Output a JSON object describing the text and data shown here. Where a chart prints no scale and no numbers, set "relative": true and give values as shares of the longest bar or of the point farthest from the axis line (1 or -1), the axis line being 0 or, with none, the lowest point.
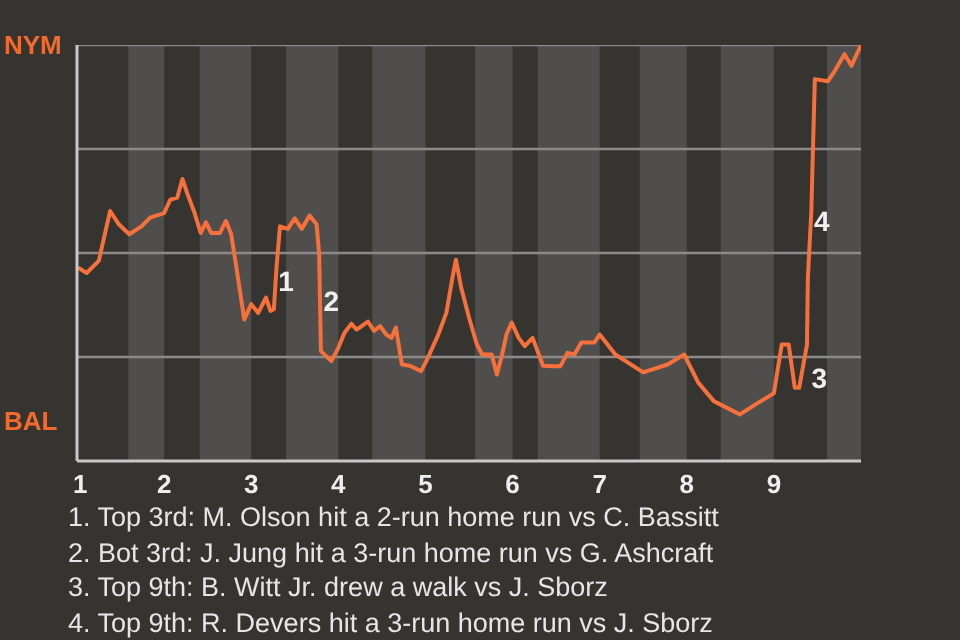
{
  "chart_data": {
    "type": "line",
    "relative": true,
    "x": [
      1.01,
      1.11,
      1.25,
      1.38,
      1.48,
      1.6,
      1.74,
      1.84,
      2.0,
      2.07,
      2.15,
      2.21,
      2.27,
      2.35,
      2.42,
      2.48,
      2.54,
      2.64,
      2.71,
      2.77,
      2.83,
      2.92,
      3.0,
      3.08,
      3.17,
      3.22,
      3.26,
      3.29,
      3.33,
      3.42,
      3.5,
      3.58,
      3.67,
      3.75,
      3.78,
      3.8,
      3.92,
      4.0,
      4.07,
      4.15,
      4.21,
      4.34,
      4.41,
      4.48,
      4.55,
      4.61,
      4.66,
      4.73,
      4.82,
      4.95,
      5.01,
      5.14,
      5.24,
      5.31,
      5.35,
      5.41,
      5.5,
      5.59,
      5.65,
      5.76,
      5.82,
      5.88,
      5.93,
      5.99,
      6.07,
      6.14,
      6.23,
      6.35,
      6.47,
      6.55,
      6.63,
      6.71,
      6.79,
      6.94,
      7.0,
      7.18,
      7.5,
      7.78,
      7.97,
      8.13,
      8.31,
      8.61,
      8.79,
      9.0,
      9.09,
      9.17,
      9.24,
      9.29,
      9.38,
      9.39,
      9.43,
      9.45,
      9.47,
      9.62,
      9.7,
      9.81,
      9.89,
      10.0
    ],
    "series": [
      {
        "color": "#f5703a",
        "values": [
          0.465,
          0.452,
          0.481,
          0.601,
          0.569,
          0.545,
          0.564,
          0.585,
          0.596,
          0.628,
          0.633,
          0.678,
          0.641,
          0.596,
          0.548,
          0.574,
          0.548,
          0.548,
          0.577,
          0.545,
          0.465,
          0.34,
          0.377,
          0.356,
          0.393,
          0.361,
          0.365,
          0.465,
          0.564,
          0.558,
          0.583,
          0.558,
          0.59,
          0.569,
          0.497,
          0.264,
          0.24,
          0.272,
          0.308,
          0.33,
          0.316,
          0.335,
          0.313,
          0.324,
          0.304,
          0.296,
          0.321,
          0.232,
          0.229,
          0.216,
          0.24,
          0.3,
          0.356,
          0.441,
          0.484,
          0.417,
          0.345,
          0.28,
          0.256,
          0.256,
          0.208,
          0.256,
          0.304,
          0.333,
          0.296,
          0.276,
          0.296,
          0.229,
          0.228,
          0.228,
          0.26,
          0.256,
          0.285,
          0.285,
          0.304,
          0.256,
          0.213,
          0.232,
          0.256,
          0.189,
          0.144,
          0.112,
          0.136,
          0.163,
          0.28,
          0.28,
          0.176,
          0.176,
          0.28,
          0.441,
          0.601,
          0.761,
          0.918,
          0.913,
          0.938,
          0.978,
          0.95,
          1.0
        ]
      }
    ],
    "xlim": [
      1,
      10
    ],
    "xticks": [
      1,
      2,
      3,
      4,
      5,
      6,
      7,
      8,
      9
    ],
    "ref_lines": [
      {
        "axis": "y",
        "value": 0.25,
        "color": "#8a8a8a"
      },
      {
        "axis": "y",
        "value": 0.5,
        "color": "#8a8a8a"
      },
      {
        "axis": "y",
        "value": 0.75,
        "color": "#8a8a8a"
      },
      {
        "axis": "y",
        "value": 1,
        "color": "#8a8a8a"
      }
    ],
    "bands": [
      {
        "axis": "x",
        "from": 1.59,
        "to": 2,
        "color": "#4f4e4c"
      },
      {
        "axis": "x",
        "from": 2.41,
        "to": 3,
        "color": "#4f4e4c"
      },
      {
        "axis": "x",
        "from": 3.4,
        "to": 4,
        "color": "#4f4e4c"
      },
      {
        "axis": "x",
        "from": 4.39,
        "to": 5,
        "color": "#4f4e4c"
      },
      {
        "axis": "x",
        "from": 5.57,
        "to": 6,
        "color": "#4f4e4c"
      },
      {
        "axis": "x",
        "from": 6.29,
        "to": 7,
        "color": "#4f4e4c"
      },
      {
        "axis": "x",
        "from": 7.46,
        "to": 8,
        "color": "#4f4e4c"
      },
      {
        "axis": "x",
        "from": 8.39,
        "to": 9,
        "color": "#4f4e4c"
      },
      {
        "axis": "x",
        "from": 9.61,
        "to": 10,
        "color": "#4f4e4c"
      }
    ],
    "annotations": [
      "NYM",
      "BAL",
      {
        "text": "1",
        "x": 3.4,
        "y": 0.433
      },
      {
        "text": "2",
        "x": 3.92,
        "y": 0.385
      },
      {
        "text": "3",
        "x": 9.52,
        "y": 0.2
      },
      {
        "text": "4",
        "x": 9.55,
        "y": 0.577
      },
      "1. Top 3rd: M. Olson hit a 2-run home run vs C. Bassitt",
      "2. Bot 3rd: J. Jung hit a 3-run home run vs G. Ashcraft",
      "3. Top 9th: B. Witt Jr. drew a walk vs J. Sborz",
      "4. Top 9th: R. Devers hit a 3-run home run vs J. Sborz"
    ]
  }
}
